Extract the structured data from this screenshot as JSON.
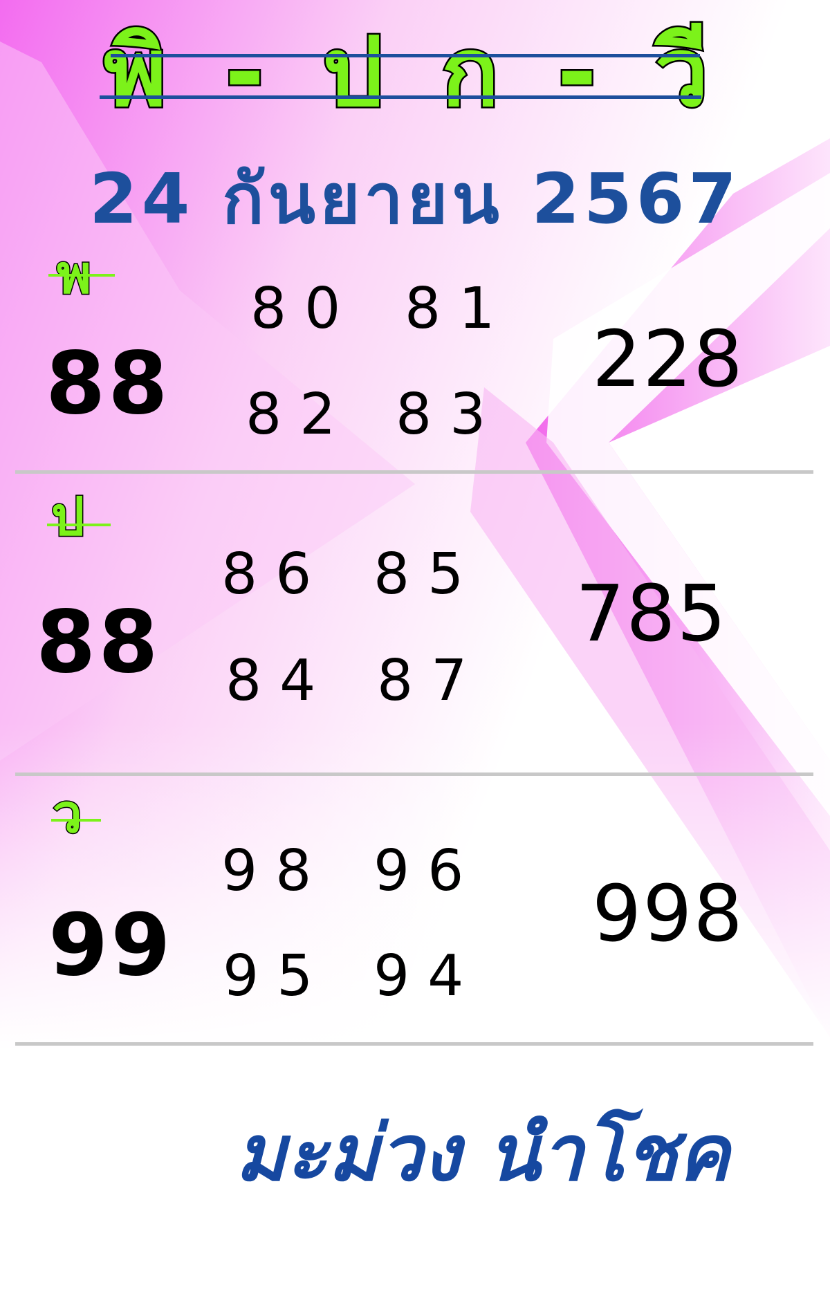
{
  "title": "พิ - ป ก - วี",
  "date": "24 กันยายน 2567",
  "sections": [
    {
      "label": "พ",
      "main": "88",
      "pairs": [
        "80",
        "81",
        "82",
        "83"
      ],
      "triple": "228"
    },
    {
      "label": "ป",
      "main": "88",
      "pairs": [
        "86",
        "85",
        "84",
        "87"
      ],
      "triple": "785"
    },
    {
      "label": "ว",
      "main": "99",
      "pairs": [
        "98",
        "96",
        "95",
        "94"
      ],
      "triple": "998"
    }
  ],
  "footer": "มะม่วง นำโชค",
  "colors": {
    "title_green": "#7cf21a",
    "blue": "#1d4f9c",
    "magenta": "#f060f0",
    "separator": "#c8c8c8"
  }
}
